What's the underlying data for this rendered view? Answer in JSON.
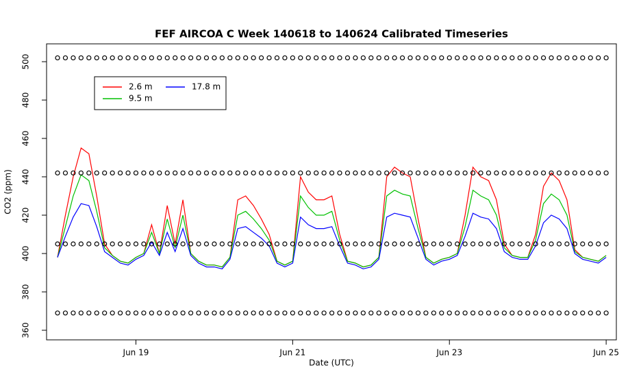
{
  "chart_data": {
    "type": "line",
    "title": "FEF AIRCOA C  Week 140618 to 140624  Calibrated Timeseries",
    "x_label": "Date (UTC)",
    "y_label": "CO2 (ppm)",
    "x": [
      18.0,
      18.1,
      18.2,
      18.3,
      18.4,
      18.5,
      18.6,
      18.7,
      18.8,
      18.9,
      19.0,
      19.1,
      19.2,
      19.3,
      19.4,
      19.5,
      19.6,
      19.7,
      19.8,
      19.9,
      20.0,
      20.1,
      20.2,
      20.3,
      20.4,
      20.5,
      20.6,
      20.7,
      20.8,
      20.9,
      21.0,
      21.1,
      21.2,
      21.3,
      21.4,
      21.5,
      21.6,
      21.7,
      21.8,
      21.9,
      22.0,
      22.1,
      22.2,
      22.3,
      22.4,
      22.5,
      22.6,
      22.7,
      22.8,
      22.9,
      23.0,
      23.1,
      23.2,
      23.3,
      23.4,
      23.5,
      23.6,
      23.7,
      23.8,
      23.9,
      24.0,
      24.1,
      24.2,
      24.3,
      24.4,
      24.5,
      24.6,
      24.7,
      24.8,
      24.9,
      25.0
    ],
    "series": [
      {
        "name": "2.6 m",
        "color": "#ff0000",
        "values": [
          398,
          420,
          440,
          455,
          452,
          430,
          405,
          399,
          396,
          395,
          398,
          400,
          415,
          400,
          425,
          405,
          428,
          400,
          396,
          394,
          394,
          393,
          398,
          428,
          430,
          425,
          418,
          410,
          396,
          394,
          396,
          440,
          432,
          428,
          428,
          430,
          410,
          396,
          395,
          393,
          394,
          398,
          440,
          445,
          442,
          440,
          418,
          398,
          395,
          397,
          398,
          400,
          420,
          445,
          440,
          438,
          428,
          405,
          399,
          398,
          398,
          410,
          435,
          442,
          438,
          428,
          402,
          398,
          397,
          396,
          399
        ]
      },
      {
        "name": "9.5 m",
        "color": "#00c000",
        "values": [
          398,
          414,
          430,
          441,
          438,
          422,
          403,
          399,
          396,
          395,
          398,
          400,
          411,
          400,
          418,
          403,
          420,
          400,
          396,
          394,
          394,
          393,
          398,
          420,
          422,
          418,
          413,
          407,
          396,
          394,
          396,
          430,
          424,
          420,
          420,
          422,
          407,
          396,
          395,
          393,
          394,
          398,
          430,
          433,
          431,
          430,
          413,
          398,
          395,
          397,
          398,
          400,
          414,
          433,
          430,
          428,
          420,
          403,
          399,
          398,
          398,
          407,
          426,
          431,
          428,
          420,
          401,
          398,
          397,
          396,
          399
        ]
      },
      {
        "name": "17.8 m",
        "color": "#0000ff",
        "values": [
          398,
          409,
          419,
          426,
          425,
          414,
          401,
          398,
          395,
          394,
          397,
          399,
          406,
          399,
          411,
          401,
          413,
          399,
          395,
          393,
          393,
          392,
          397,
          413,
          414,
          411,
          408,
          404,
          395,
          393,
          395,
          419,
          415,
          413,
          413,
          414,
          404,
          395,
          394,
          392,
          393,
          397,
          419,
          421,
          420,
          419,
          408,
          397,
          394,
          396,
          397,
          399,
          409,
          421,
          419,
          418,
          413,
          401,
          398,
          397,
          397,
          404,
          416,
          420,
          418,
          413,
          400,
          397,
          396,
          395,
          398
        ]
      }
    ],
    "marker_levels": [
      502,
      442,
      405,
      369
    ],
    "marker_color": "#000000",
    "xlim": [
      17.86,
      25.13
    ],
    "ylim": [
      355,
      509.3
    ],
    "xticks": [
      {
        "value": 19,
        "label": "Jun 19"
      },
      {
        "value": 21,
        "label": "Jun 21"
      },
      {
        "value": 23,
        "label": "Jun 23"
      },
      {
        "value": 25,
        "label": "Jun 25"
      }
    ],
    "yticks": [
      360,
      380,
      400,
      420,
      440,
      460,
      480,
      500
    ],
    "grid": false,
    "legend_position": "top-left"
  }
}
